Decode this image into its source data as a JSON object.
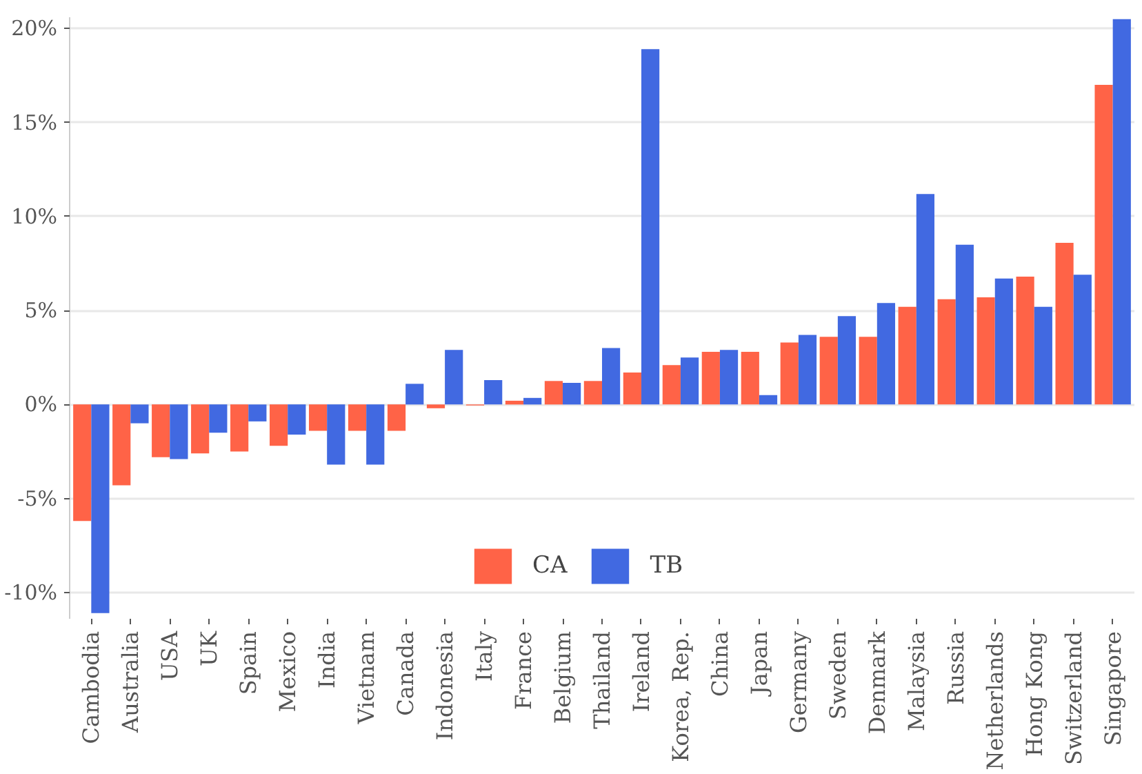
{
  "chart_data": {
    "type": "bar",
    "categories": [
      "Cambodia",
      "Australia",
      "USA",
      "UK",
      "Spain",
      "Mexico",
      "India",
      "Vietnam",
      "Canada",
      "Indonesia",
      "Italy",
      "France",
      "Belgium",
      "Thailand",
      "Ireland",
      "Korea, Rep.",
      "China",
      "Japan",
      "Germany",
      "Sweden",
      "Denmark",
      "Malaysia",
      "Russia",
      "Netherlands",
      "Hong Kong",
      "Switzerland",
      "Singapore"
    ],
    "series": [
      {
        "name": "CA",
        "color": "#ff6347",
        "values": [
          -6.2,
          -4.3,
          -2.8,
          -2.6,
          -2.5,
          -2.2,
          -1.4,
          -1.4,
          -1.4,
          -0.2,
          -0.05,
          0.2,
          1.25,
          1.25,
          1.7,
          2.1,
          2.8,
          2.8,
          3.3,
          3.6,
          3.6,
          5.2,
          5.6,
          5.7,
          6.8,
          8.6,
          17.0
        ]
      },
      {
        "name": "TB",
        "color": "#4169e1",
        "values": [
          -11.1,
          -1.0,
          -2.9,
          -1.5,
          -0.9,
          -1.6,
          -3.2,
          -3.2,
          1.1,
          2.9,
          1.3,
          0.35,
          1.15,
          3.0,
          18.9,
          2.5,
          2.9,
          0.5,
          3.7,
          4.7,
          5.4,
          11.2,
          8.5,
          6.7,
          5.2,
          6.9,
          20.5
        ]
      }
    ],
    "ylim": [
      -11.4,
      20.6
    ],
    "yticks": [
      {
        "value": -10,
        "label": "-10%"
      },
      {
        "value": -5,
        "label": "-5%"
      },
      {
        "value": 0,
        "label": "0%"
      },
      {
        "value": 5,
        "label": "5%"
      },
      {
        "value": 10,
        "label": "10%"
      },
      {
        "value": 15,
        "label": "15%"
      },
      {
        "value": 20,
        "label": "20%"
      }
    ],
    "grid": "y",
    "legend": "bottom"
  }
}
